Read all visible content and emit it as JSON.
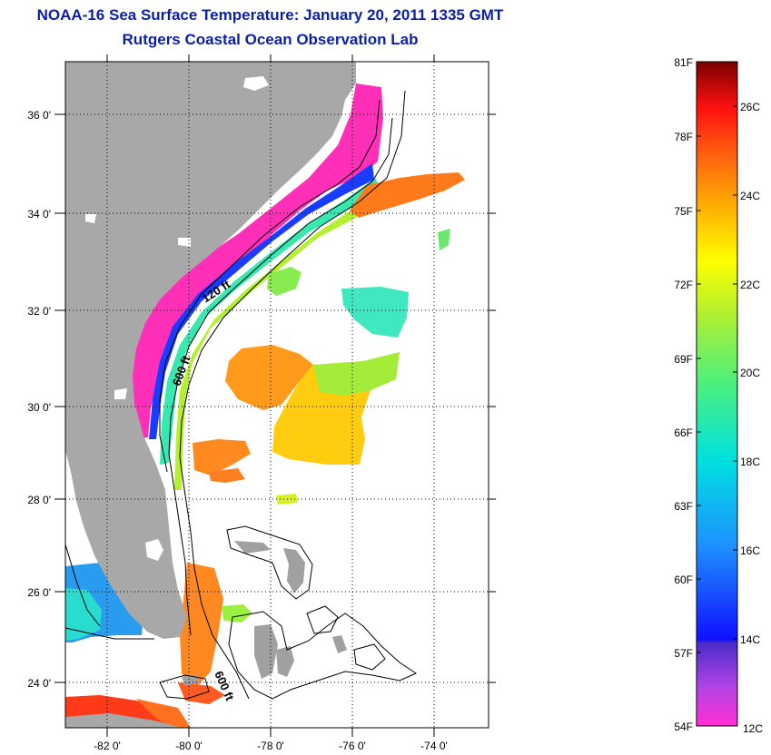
{
  "title": {
    "line1": "NOAA-16 Sea Surface Temperature:  January 20, 2011 1335 GMT",
    "line2": "Rutgers Coastal Ocean Observation Lab"
  },
  "map": {
    "lat_ticks": [
      "36 0'",
      "34 0'",
      "32 0'",
      "30 0'",
      "28 0'",
      "26 0'",
      "24 0'"
    ],
    "lon_ticks": [
      "-82 0'",
      "-80 0'",
      "-78 0'",
      "-76 0'",
      "-74 0'"
    ],
    "isobath_labels": [
      "120 ft",
      "600 ft",
      "600 ft"
    ],
    "land_color": "#a8a8a8",
    "grid": "dotted"
  },
  "colorbar": {
    "fahrenheit_labels": [
      "81F",
      "78F",
      "75F",
      "72F",
      "69F",
      "66F",
      "63F",
      "60F",
      "57F",
      "54F"
    ],
    "celsius_labels": [
      "26C",
      "24C",
      "22C",
      "20C",
      "18C",
      "16C",
      "14C",
      "12C"
    ],
    "range_f": [
      54,
      81
    ],
    "range_c": [
      12,
      27
    ]
  }
}
